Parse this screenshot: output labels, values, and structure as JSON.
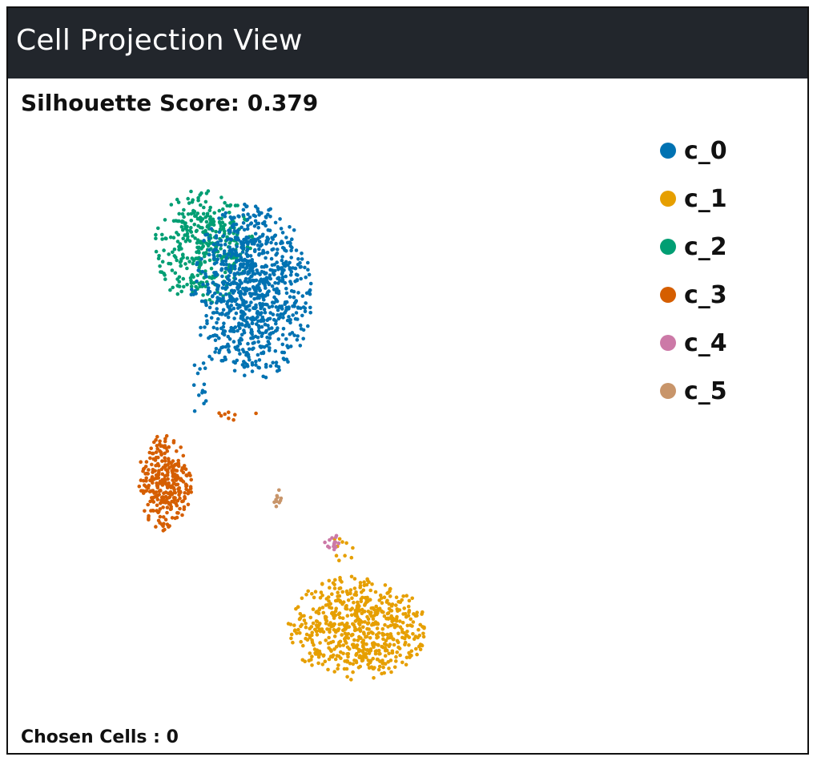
{
  "header": {
    "title": "Cell Projection View"
  },
  "metrics": {
    "silhouette_text": "Silhouette Score: 0.379",
    "chosen_text": "Chosen Cells : 0"
  },
  "chart_data": {
    "type": "scatter",
    "title": "",
    "xlabel": "",
    "ylabel": "",
    "xlim": [
      0,
      100
    ],
    "ylim": [
      0,
      100
    ],
    "grid": false,
    "legend_position": "top-right",
    "series": [
      {
        "name": "c_0",
        "color": "#0072b2",
        "clusters": [
          {
            "center": [
              34,
              78
            ],
            "spread": [
              8.0,
              10.0
            ],
            "count": 900
          },
          {
            "center": [
              23,
              60
            ],
            "spread": [
              2.0,
              3.5
            ],
            "count": 14
          }
        ]
      },
      {
        "name": "c_1",
        "color": "#e69f00",
        "clusters": [
          {
            "center": [
              56,
              18
            ],
            "spread": [
              9.0,
              6.0
            ],
            "count": 620
          },
          {
            "center": [
              53,
              32
            ],
            "spread": [
              1.5,
              2.0
            ],
            "count": 10
          }
        ]
      },
      {
        "name": "c_2",
        "color": "#009e73",
        "clusters": [
          {
            "center": [
              24,
              86
            ],
            "spread": [
              6.5,
              6.5
            ],
            "count": 360
          }
        ]
      },
      {
        "name": "c_3",
        "color": "#d55e00",
        "clusters": [
          {
            "center": [
              16,
              44
            ],
            "spread": [
              3.5,
              5.5
            ],
            "count": 300
          },
          {
            "center": [
              30,
              56
            ],
            "spread": [
              3.5,
              1.0
            ],
            "count": 8
          }
        ]
      },
      {
        "name": "c_4",
        "color": "#cc79a7",
        "clusters": [
          {
            "center": [
              51,
              33
            ],
            "spread": [
              1.2,
              1.0
            ],
            "count": 18
          }
        ]
      },
      {
        "name": "c_5",
        "color": "#c8956a",
        "clusters": [
          {
            "center": [
              39.5,
              41
            ],
            "spread": [
              0.6,
              1.5
            ],
            "count": 10
          }
        ]
      }
    ]
  }
}
